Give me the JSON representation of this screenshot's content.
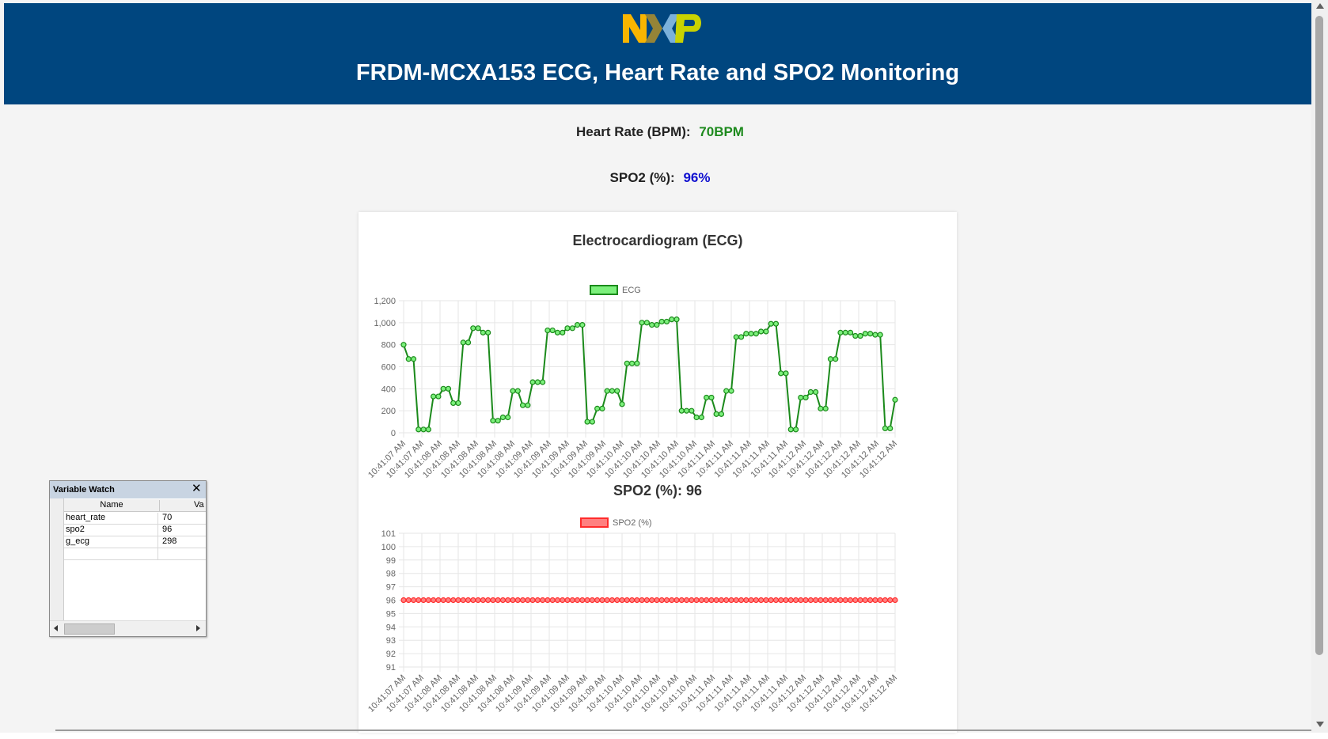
{
  "header": {
    "title": "FRDM-MCXA153 ECG, Heart Rate and SPO2 Monitoring",
    "logo_text": "NXP",
    "logo_colors": [
      "#f9b500",
      "#958437",
      "#7bb1db",
      "#c9d200"
    ]
  },
  "metrics": {
    "heart_rate_label": "Heart Rate (BPM):",
    "heart_rate_value": "70BPM",
    "spo2_label": "SPO2 (%):",
    "spo2_value": "96%"
  },
  "colors": {
    "header_bg": "#00467f",
    "heart_rate_value": "#1e8a1e",
    "spo2_value": "#1010d0",
    "ecg_line": "#1b8a1b",
    "ecg_fill": "#7cf07c",
    "spo2_line": "#ff2b2b",
    "spo2_fill": "#ff8080"
  },
  "chart_data": [
    {
      "type": "line",
      "title": "Electrocardiogram (ECG)",
      "legend": "top",
      "grid": true,
      "ylim": [
        0,
        1200
      ],
      "y_ticks": [
        "0",
        "200",
        "400",
        "600",
        "800",
        "1,000",
        "1,200"
      ],
      "x_tick_labels": [
        "10:41:07 AM",
        "10:41:07 AM",
        "10:41:08 AM",
        "10:41:08 AM",
        "10:41:08 AM",
        "10:41:08 AM",
        "10:41:08 AM",
        "10:41:09 AM",
        "10:41:09 AM",
        "10:41:09 AM",
        "10:41:09 AM",
        "10:41:09 AM",
        "10:41:10 AM",
        "10:41:10 AM",
        "10:41:10 AM",
        "10:41:10 AM",
        "10:41:10 AM",
        "10:41:11 AM",
        "10:41:11 AM",
        "10:41:11 AM",
        "10:41:11 AM",
        "10:41:11 AM",
        "10:41:12 AM",
        "10:41:12 AM",
        "10:41:12 AM",
        "10:41:12 AM",
        "10:41:12 AM",
        "10:41:12 AM"
      ],
      "series": [
        {
          "name": "ECG",
          "values": [
            800,
            670,
            670,
            30,
            30,
            30,
            330,
            330,
            400,
            400,
            270,
            270,
            820,
            820,
            950,
            950,
            910,
            910,
            110,
            110,
            140,
            140,
            380,
            380,
            250,
            250,
            460,
            460,
            460,
            930,
            930,
            910,
            910,
            950,
            950,
            980,
            980,
            100,
            100,
            220,
            220,
            380,
            380,
            380,
            260,
            630,
            630,
            630,
            1000,
            1000,
            980,
            980,
            1010,
            1010,
            1030,
            1030,
            200,
            200,
            200,
            140,
            140,
            320,
            320,
            170,
            170,
            380,
            380,
            870,
            870,
            900,
            900,
            900,
            920,
            920,
            990,
            990,
            540,
            540,
            30,
            30,
            320,
            320,
            370,
            370,
            220,
            220,
            670,
            670,
            910,
            910,
            910,
            880,
            880,
            900,
            900,
            890,
            890,
            40,
            40,
            300
          ]
        }
      ]
    },
    {
      "type": "line",
      "title": "SPO2 (%): 96",
      "legend": "top",
      "grid": true,
      "ylim": [
        91,
        101
      ],
      "y_ticks": [
        "91",
        "92",
        "93",
        "94",
        "95",
        "96",
        "97",
        "98",
        "99",
        "100",
        "101"
      ],
      "x_tick_labels": [
        "10:41:07 AM",
        "10:41:07 AM",
        "10:41:08 AM",
        "10:41:08 AM",
        "10:41:08 AM",
        "10:41:08 AM",
        "10:41:08 AM",
        "10:41:09 AM",
        "10:41:09 AM",
        "10:41:09 AM",
        "10:41:09 AM",
        "10:41:09 AM",
        "10:41:10 AM",
        "10:41:10 AM",
        "10:41:10 AM",
        "10:41:10 AM",
        "10:41:10 AM",
        "10:41:11 AM",
        "10:41:11 AM",
        "10:41:11 AM",
        "10:41:11 AM",
        "10:41:11 AM",
        "10:41:12 AM",
        "10:41:12 AM",
        "10:41:12 AM",
        "10:41:12 AM",
        "10:41:12 AM",
        "10:41:12 AM"
      ],
      "series": [
        {
          "name": "SPO2 (%)",
          "values": [
            96,
            96,
            96,
            96,
            96,
            96,
            96,
            96,
            96,
            96,
            96,
            96,
            96,
            96,
            96,
            96,
            96,
            96,
            96,
            96,
            96,
            96,
            96,
            96,
            96,
            96,
            96,
            96,
            96,
            96,
            96,
            96,
            96,
            96,
            96,
            96,
            96,
            96,
            96,
            96,
            96,
            96,
            96,
            96,
            96,
            96,
            96,
            96,
            96,
            96,
            96,
            96,
            96,
            96,
            96,
            96,
            96,
            96,
            96,
            96,
            96,
            96,
            96,
            96,
            96,
            96,
            96,
            96,
            96,
            96,
            96,
            96,
            96,
            96,
            96,
            96,
            96,
            96,
            96,
            96,
            96,
            96,
            96,
            96,
            96,
            96,
            96,
            96,
            96,
            96,
            96,
            96,
            96,
            96,
            96,
            96,
            96,
            96,
            96,
            96
          ]
        }
      ]
    }
  ],
  "variable_watch": {
    "title": "Variable Watch",
    "columns": [
      "Name",
      "Va"
    ],
    "rows": [
      {
        "name": "heart_rate",
        "value": "70"
      },
      {
        "name": "spo2",
        "value": "96"
      },
      {
        "name": "g_ecg",
        "value": "298"
      }
    ]
  }
}
